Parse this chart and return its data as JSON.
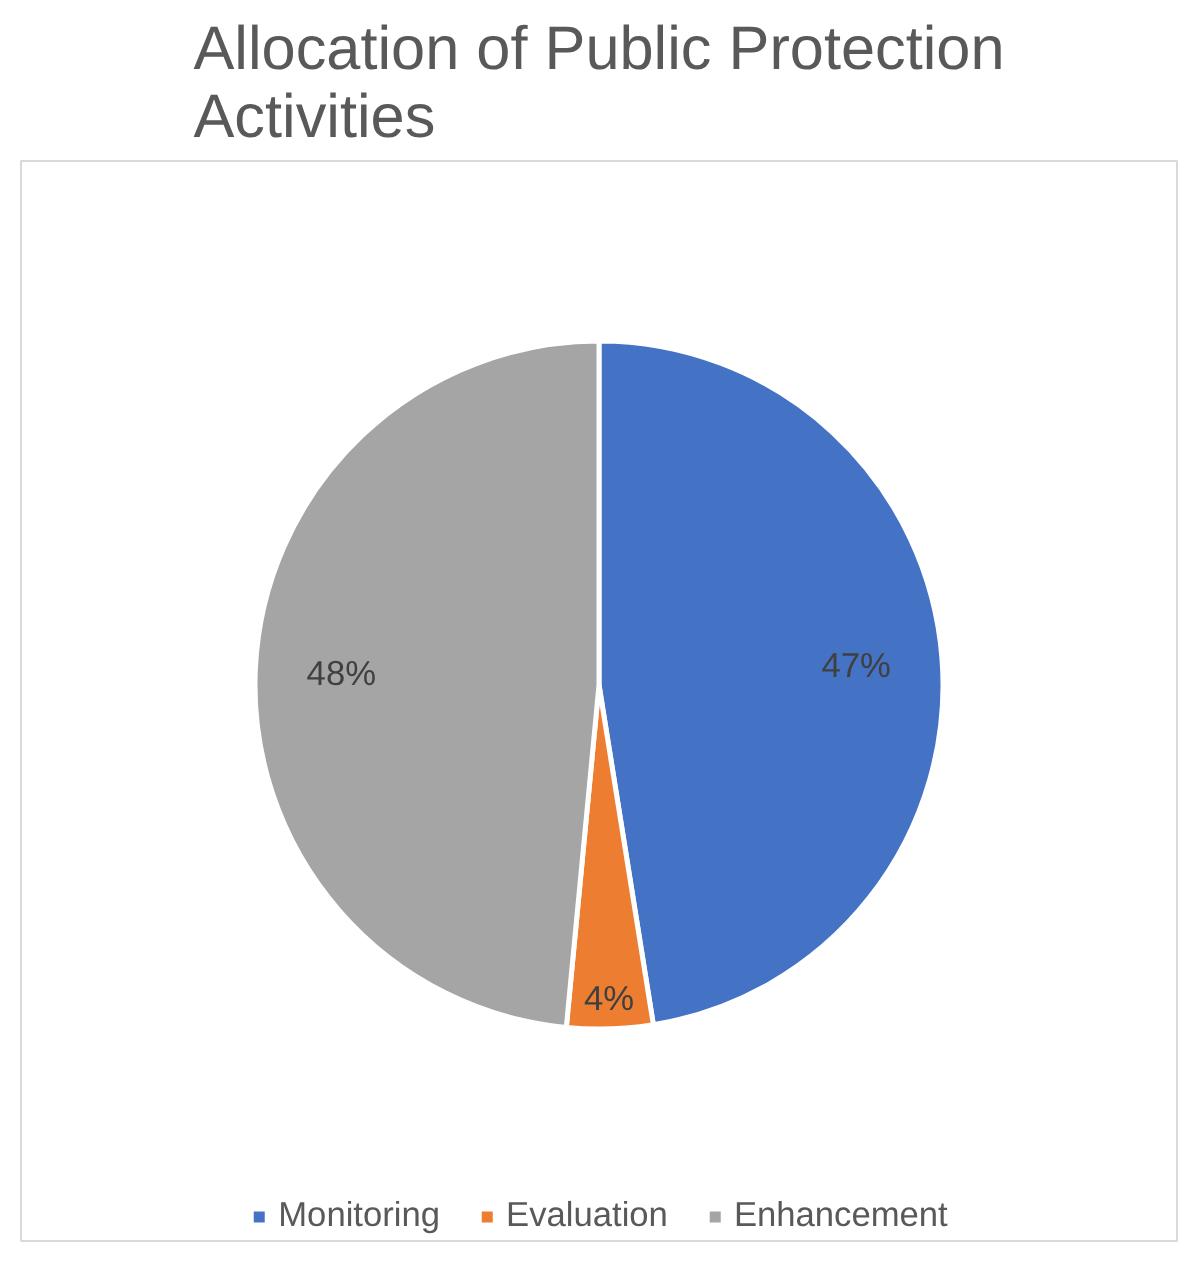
{
  "chart_data": {
    "type": "pie",
    "title": "Allocation of Public Protection Activities",
    "categories": [
      "Monitoring",
      "Evaluation",
      "Enhancement"
    ],
    "values": [
      47,
      4,
      48
    ],
    "value_labels": [
      "47%",
      "4%",
      "48%"
    ],
    "colors": [
      "#4472c4",
      "#ed7d31",
      "#a5a5a5"
    ],
    "legend": "bottom"
  }
}
